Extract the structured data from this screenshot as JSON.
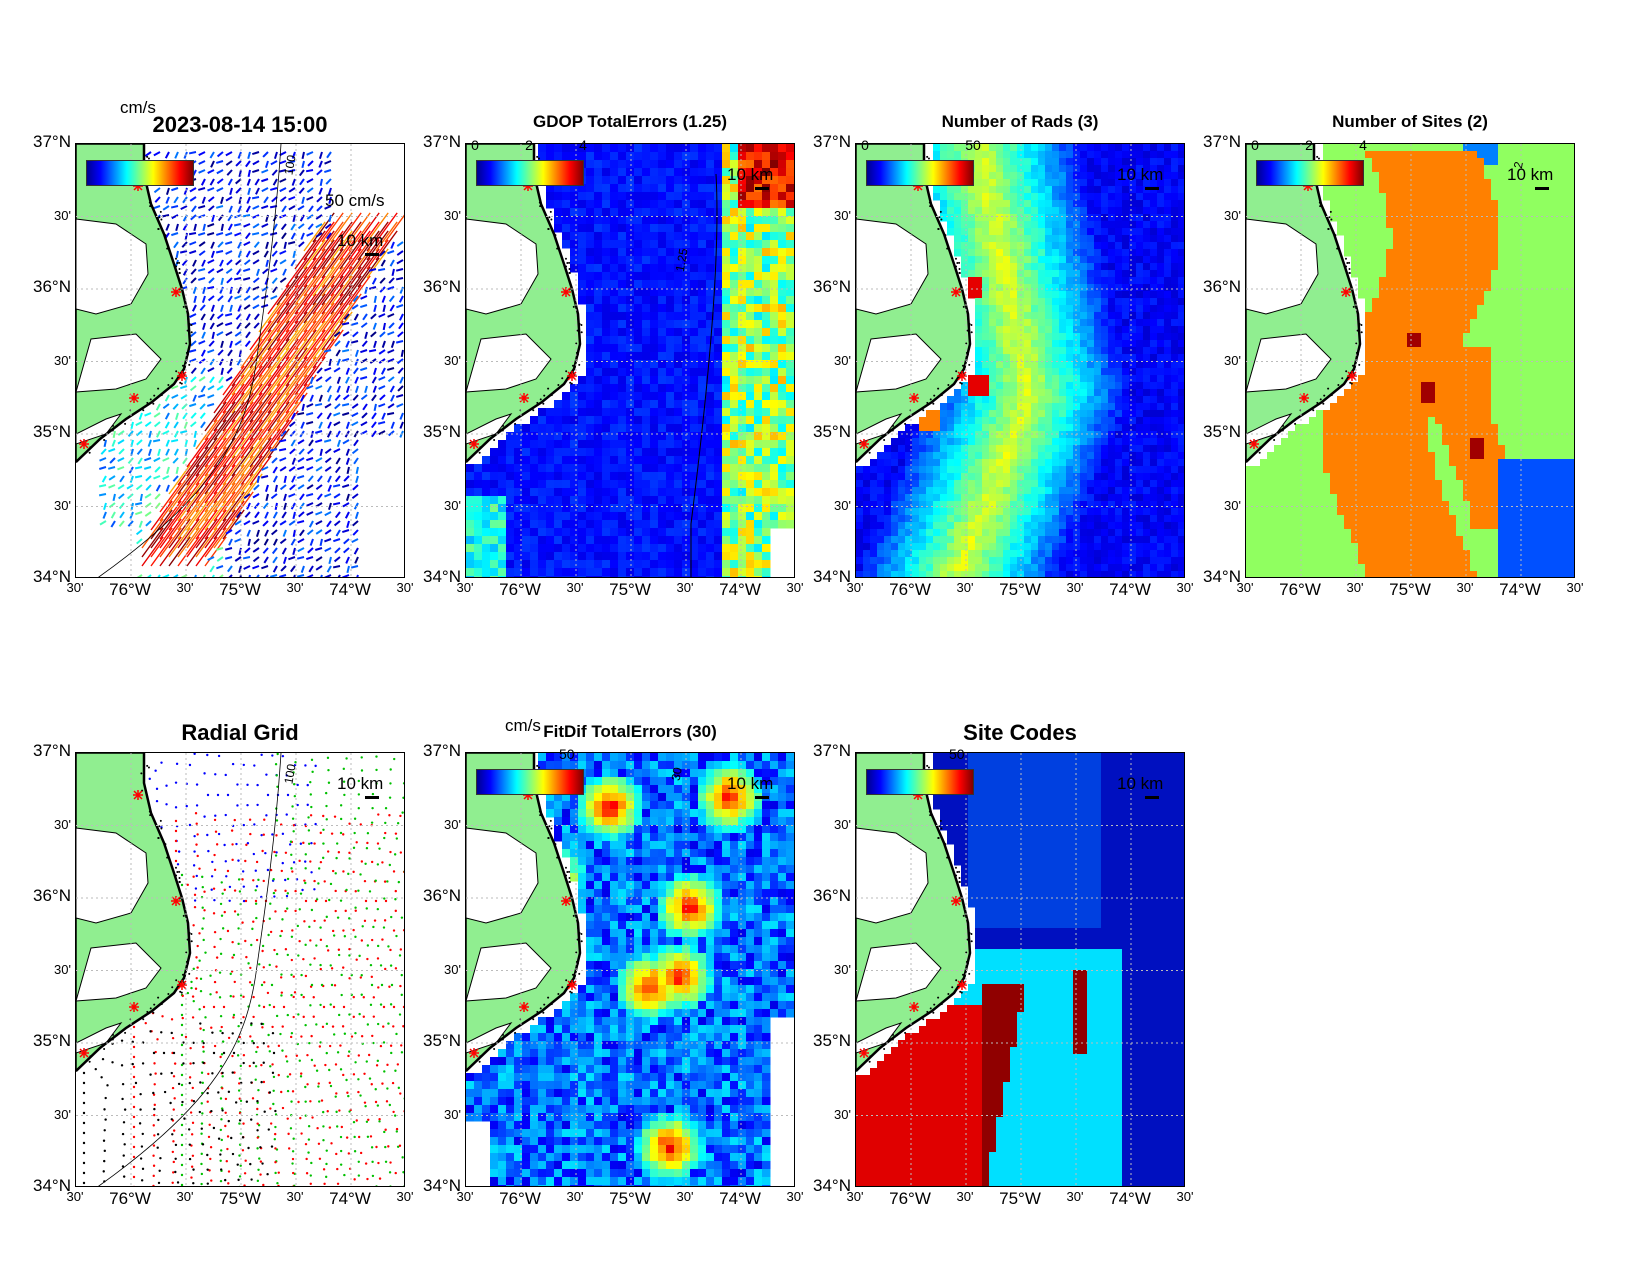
{
  "panels": [
    {
      "id": "p1",
      "title": "2023-08-14 15:00",
      "kind": "vectors",
      "cbar_unit": "cm/s",
      "cbar_ticks": [],
      "scale": "10 km",
      "speed_ref": "50 cm/s",
      "contour": "100"
    },
    {
      "id": "p2",
      "title": "GDOP TotalErrors (1.25)",
      "kind": "gdop",
      "cbar_ticks": [
        "0",
        "2",
        "4"
      ],
      "scale": "10 km",
      "contour": "1.25"
    },
    {
      "id": "p3",
      "title": "Number of Rads (3)",
      "kind": "rads",
      "cbar_ticks": [
        "0",
        "50"
      ],
      "scale": "10 km"
    },
    {
      "id": "p4",
      "title": "Number of Sites (2)",
      "kind": "sites",
      "cbar_ticks": [
        "0",
        "2",
        "4"
      ],
      "scale": "10 km",
      "contour": "2"
    },
    {
      "id": "p5",
      "title": "Radial Grid",
      "kind": "radial",
      "cbar_ticks": [],
      "scale": "10 km",
      "contour": "100"
    },
    {
      "id": "p6",
      "title": "FitDif TotalErrors (30)",
      "kind": "fitdif",
      "cbar_unit": "cm/s",
      "cbar_ticks": [
        "50"
      ],
      "scale": "10 km",
      "contour": "30"
    },
    {
      "id": "p7",
      "title": "Site Codes",
      "kind": "codes",
      "cbar_ticks": [
        "50"
      ],
      "scale": "10 km"
    }
  ],
  "axes": {
    "y_labels": [
      "37°N",
      "30'",
      "36°N",
      "30'",
      "35°N",
      "30'",
      "34°N"
    ],
    "x_labels": [
      "30'",
      "76°W",
      "30'",
      "75°W",
      "30'",
      "74°W",
      "30'"
    ]
  },
  "colors": {
    "land": "#90ee90",
    "jet_low": "#00008f",
    "jet_high": "#800000",
    "site_marker": "#ff0000"
  }
}
